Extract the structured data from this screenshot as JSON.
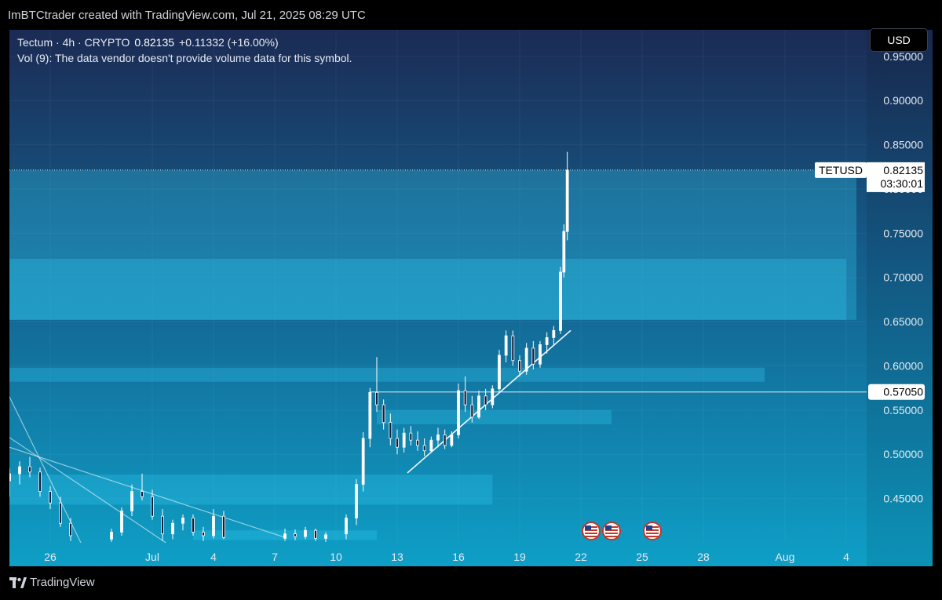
{
  "header": {
    "credit": "ImBTCtrader created with TradingView.com, Jul 21, 2025 08:29 UTC"
  },
  "legend": {
    "symbol": "Tectum · 4h · CRYPTO",
    "price": "0.82135",
    "change": "+0.11332 (+16.00%)",
    "volume_note": "Vol (9): The data vendor doesn't provide volume data for this symbol."
  },
  "currency_button": "USD",
  "footer": {
    "brand": "TradingView"
  },
  "colors": {
    "background_top": "#1b2b54",
    "background_bottom": "#0e9fc6",
    "zone": "#2ec6ec",
    "candle": "#ffffff",
    "trendline": "#ffffff"
  },
  "chart_data": {
    "type": "candlestick",
    "symbol": "TETUSD",
    "timeframe": "4h",
    "ylim": [
      0.4,
      0.98
    ],
    "xlim": [
      "2025-06-24",
      "2025-08-05"
    ],
    "y_ticks": [
      0.45,
      0.5,
      0.55,
      0.6,
      0.65,
      0.7,
      0.75,
      0.8,
      0.85,
      0.9,
      0.95
    ],
    "y_tick_labels": [
      "0.45000",
      "0.50000",
      "0.55000",
      "0.60000",
      "0.65000",
      "0.70000",
      "0.75000",
      "0.80000",
      "0.85000",
      "0.90000",
      "0.95000"
    ],
    "x_ticks": [
      {
        "date": "2025-06-26",
        "label": "26"
      },
      {
        "date": "2025-07-01",
        "label": "Jul"
      },
      {
        "date": "2025-07-04",
        "label": "4"
      },
      {
        "date": "2025-07-07",
        "label": "7"
      },
      {
        "date": "2025-07-10",
        "label": "10"
      },
      {
        "date": "2025-07-13",
        "label": "13"
      },
      {
        "date": "2025-07-16",
        "label": "16"
      },
      {
        "date": "2025-07-19",
        "label": "19"
      },
      {
        "date": "2025-07-22",
        "label": "22"
      },
      {
        "date": "2025-07-25",
        "label": "25"
      },
      {
        "date": "2025-07-28",
        "label": "28"
      },
      {
        "date": "2025-08-01",
        "label": "Aug"
      },
      {
        "date": "2025-08-04",
        "label": "4"
      }
    ],
    "price_label": {
      "ticker": "TETUSD",
      "value": 0.82135,
      "value_text": "0.82135",
      "countdown": "03:30:01"
    },
    "level_line": {
      "value": 0.5705,
      "label": "0.57050",
      "from": "2025-07-11T16:00"
    },
    "zones": [
      {
        "y0": 0.652,
        "y1": 0.821,
        "from": "2025-06-24",
        "to": "2025-08-04T12:00"
      },
      {
        "y0": 0.652,
        "y1": 0.721,
        "from": "2025-06-24",
        "to": "2025-08-04"
      },
      {
        "y0": 0.582,
        "y1": 0.598,
        "from": "2025-06-24",
        "to": "2025-07-31"
      },
      {
        "y0": 0.534,
        "y1": 0.55,
        "from": "2025-07-12",
        "to": "2025-07-23T12:00"
      },
      {
        "y0": 0.443,
        "y1": 0.477,
        "from": "2025-06-24",
        "to": "2025-07-17T16:00"
      },
      {
        "y0": 0.403,
        "y1": 0.414,
        "from": "2025-07-03",
        "to": "2025-07-12"
      }
    ],
    "trendlines": [
      {
        "from": [
          "2025-07-13T12:00",
          0.479
        ],
        "to": [
          "2025-07-21T12:00",
          0.64
        ]
      },
      {
        "from": [
          "2025-06-24",
          0.508
        ],
        "to": [
          "2025-07-07T12:00",
          0.406
        ]
      },
      {
        "from": [
          "2025-06-24",
          0.565
        ],
        "to": [
          "2025-06-27T12:00",
          0.4
        ]
      },
      {
        "from": [
          "2025-06-24",
          0.519
        ],
        "to": [
          "2025-07-01T16:00",
          0.4
        ]
      }
    ],
    "events": [
      {
        "date": "2025-07-22T12:00",
        "label": "US"
      },
      {
        "date": "2025-07-23T12:00",
        "label": "US"
      },
      {
        "date": "2025-07-25T12:00",
        "label": "US"
      }
    ],
    "candles": [
      {
        "t": "2025-06-24T00:00",
        "o": 0.47,
        "h": 0.484,
        "l": 0.452,
        "c": 0.478
      },
      {
        "t": "2025-06-24T12:00",
        "o": 0.478,
        "h": 0.492,
        "l": 0.466,
        "c": 0.486
      },
      {
        "t": "2025-06-25T00:00",
        "o": 0.486,
        "h": 0.497,
        "l": 0.474,
        "c": 0.48
      },
      {
        "t": "2025-06-25T12:00",
        "o": 0.48,
        "h": 0.485,
        "l": 0.452,
        "c": 0.458
      },
      {
        "t": "2025-06-26T00:00",
        "o": 0.458,
        "h": 0.464,
        "l": 0.438,
        "c": 0.445
      },
      {
        "t": "2025-06-26T12:00",
        "o": 0.445,
        "h": 0.452,
        "l": 0.418,
        "c": 0.422
      },
      {
        "t": "2025-06-27T00:00",
        "o": 0.422,
        "h": 0.428,
        "l": 0.402,
        "c": 0.408
      },
      {
        "t": "2025-06-29T00:00",
        "o": 0.404,
        "h": 0.416,
        "l": 0.401,
        "c": 0.412
      },
      {
        "t": "2025-06-29T12:00",
        "o": 0.412,
        "h": 0.44,
        "l": 0.408,
        "c": 0.436
      },
      {
        "t": "2025-06-30T00:00",
        "o": 0.436,
        "h": 0.466,
        "l": 0.43,
        "c": 0.458
      },
      {
        "t": "2025-06-30T12:00",
        "o": 0.458,
        "h": 0.478,
        "l": 0.448,
        "c": 0.452
      },
      {
        "t": "2025-07-01T00:00",
        "o": 0.452,
        "h": 0.46,
        "l": 0.426,
        "c": 0.43
      },
      {
        "t": "2025-07-01T12:00",
        "o": 0.43,
        "h": 0.438,
        "l": 0.402,
        "c": 0.41
      },
      {
        "t": "2025-07-02T00:00",
        "o": 0.41,
        "h": 0.426,
        "l": 0.404,
        "c": 0.422
      },
      {
        "t": "2025-07-02T12:00",
        "o": 0.422,
        "h": 0.432,
        "l": 0.414,
        "c": 0.428
      },
      {
        "t": "2025-07-03T00:00",
        "o": 0.428,
        "h": 0.432,
        "l": 0.408,
        "c": 0.412
      },
      {
        "t": "2025-07-03T12:00",
        "o": 0.412,
        "h": 0.418,
        "l": 0.402,
        "c": 0.408
      },
      {
        "t": "2025-07-04T00:00",
        "o": 0.408,
        "h": 0.438,
        "l": 0.405,
        "c": 0.43
      },
      {
        "t": "2025-07-04T12:00",
        "o": 0.43,
        "h": 0.436,
        "l": 0.404,
        "c": 0.406
      },
      {
        "t": "2025-07-07T12:00",
        "o": 0.405,
        "h": 0.416,
        "l": 0.402,
        "c": 0.41
      },
      {
        "t": "2025-07-08T00:00",
        "o": 0.41,
        "h": 0.415,
        "l": 0.403,
        "c": 0.407
      },
      {
        "t": "2025-07-08T12:00",
        "o": 0.407,
        "h": 0.418,
        "l": 0.404,
        "c": 0.414
      },
      {
        "t": "2025-07-09T00:00",
        "o": 0.414,
        "h": 0.416,
        "l": 0.402,
        "c": 0.405
      },
      {
        "t": "2025-07-09T12:00",
        "o": 0.405,
        "h": 0.412,
        "l": 0.401,
        "c": 0.409
      },
      {
        "t": "2025-07-10T12:00",
        "o": 0.41,
        "h": 0.432,
        "l": 0.404,
        "c": 0.428
      },
      {
        "t": "2025-07-11T00:00",
        "o": 0.428,
        "h": 0.472,
        "l": 0.42,
        "c": 0.466
      },
      {
        "t": "2025-07-11T08:00",
        "o": 0.466,
        "h": 0.525,
        "l": 0.458,
        "c": 0.518
      },
      {
        "t": "2025-07-11T16:00",
        "o": 0.518,
        "h": 0.575,
        "l": 0.508,
        "c": 0.57
      },
      {
        "t": "2025-07-12T00:00",
        "o": 0.57,
        "h": 0.61,
        "l": 0.548,
        "c": 0.556
      },
      {
        "t": "2025-07-12T08:00",
        "o": 0.556,
        "h": 0.562,
        "l": 0.528,
        "c": 0.536
      },
      {
        "t": "2025-07-12T16:00",
        "o": 0.536,
        "h": 0.546,
        "l": 0.51,
        "c": 0.518
      },
      {
        "t": "2025-07-13T00:00",
        "o": 0.518,
        "h": 0.528,
        "l": 0.5,
        "c": 0.508
      },
      {
        "t": "2025-07-13T08:00",
        "o": 0.508,
        "h": 0.53,
        "l": 0.502,
        "c": 0.524
      },
      {
        "t": "2025-07-13T16:00",
        "o": 0.524,
        "h": 0.532,
        "l": 0.51,
        "c": 0.516
      },
      {
        "t": "2025-07-14T00:00",
        "o": 0.516,
        "h": 0.526,
        "l": 0.504,
        "c": 0.51
      },
      {
        "t": "2025-07-14T08:00",
        "o": 0.51,
        "h": 0.518,
        "l": 0.498,
        "c": 0.504
      },
      {
        "t": "2025-07-14T16:00",
        "o": 0.504,
        "h": 0.52,
        "l": 0.502,
        "c": 0.516
      },
      {
        "t": "2025-07-15T00:00",
        "o": 0.516,
        "h": 0.53,
        "l": 0.508,
        "c": 0.522
      },
      {
        "t": "2025-07-15T08:00",
        "o": 0.522,
        "h": 0.528,
        "l": 0.506,
        "c": 0.51
      },
      {
        "t": "2025-07-15T16:00",
        "o": 0.51,
        "h": 0.526,
        "l": 0.508,
        "c": 0.522
      },
      {
        "t": "2025-07-16T00:00",
        "o": 0.522,
        "h": 0.58,
        "l": 0.518,
        "c": 0.572
      },
      {
        "t": "2025-07-16T08:00",
        "o": 0.572,
        "h": 0.588,
        "l": 0.548,
        "c": 0.556
      },
      {
        "t": "2025-07-16T16:00",
        "o": 0.556,
        "h": 0.566,
        "l": 0.536,
        "c": 0.542
      },
      {
        "t": "2025-07-17T00:00",
        "o": 0.542,
        "h": 0.572,
        "l": 0.54,
        "c": 0.566
      },
      {
        "t": "2025-07-17T08:00",
        "o": 0.566,
        "h": 0.574,
        "l": 0.55,
        "c": 0.556
      },
      {
        "t": "2025-07-17T16:00",
        "o": 0.556,
        "h": 0.578,
        "l": 0.552,
        "c": 0.574
      },
      {
        "t": "2025-07-18T00:00",
        "o": 0.574,
        "h": 0.618,
        "l": 0.57,
        "c": 0.612
      },
      {
        "t": "2025-07-18T08:00",
        "o": 0.612,
        "h": 0.64,
        "l": 0.604,
        "c": 0.634
      },
      {
        "t": "2025-07-18T16:00",
        "o": 0.634,
        "h": 0.64,
        "l": 0.6,
        "c": 0.606
      },
      {
        "t": "2025-07-19T00:00",
        "o": 0.606,
        "h": 0.612,
        "l": 0.588,
        "c": 0.594
      },
      {
        "t": "2025-07-19T08:00",
        "o": 0.594,
        "h": 0.626,
        "l": 0.59,
        "c": 0.62
      },
      {
        "t": "2025-07-19T16:00",
        "o": 0.62,
        "h": 0.628,
        "l": 0.596,
        "c": 0.602
      },
      {
        "t": "2025-07-20T00:00",
        "o": 0.602,
        "h": 0.628,
        "l": 0.598,
        "c": 0.624
      },
      {
        "t": "2025-07-20T08:00",
        "o": 0.624,
        "h": 0.638,
        "l": 0.614,
        "c": 0.632
      },
      {
        "t": "2025-07-20T16:00",
        "o": 0.632,
        "h": 0.645,
        "l": 0.624,
        "c": 0.64
      },
      {
        "t": "2025-07-21T00:00",
        "o": 0.64,
        "h": 0.712,
        "l": 0.636,
        "c": 0.706
      },
      {
        "t": "2025-07-21T04:00",
        "o": 0.706,
        "h": 0.76,
        "l": 0.7,
        "c": 0.752
      },
      {
        "t": "2025-07-21T08:00",
        "o": 0.752,
        "h": 0.842,
        "l": 0.742,
        "c": 0.82135
      }
    ]
  }
}
